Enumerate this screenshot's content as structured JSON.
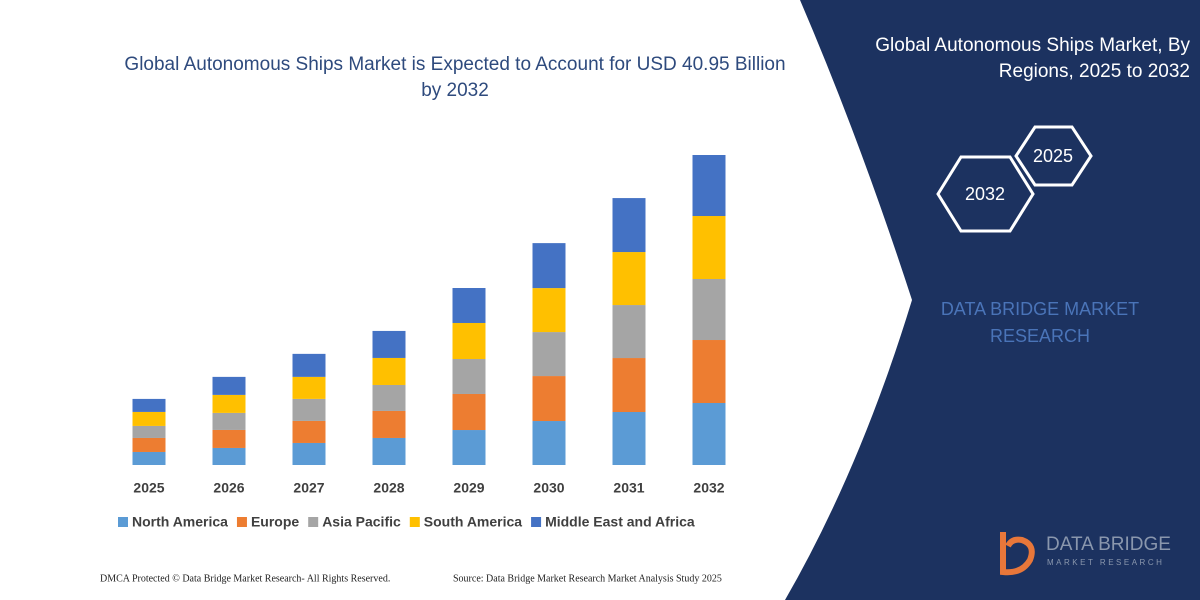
{
  "chart_data": {
    "type": "bar",
    "stacked": true,
    "title": "Global Autonomous Ships Market is Expected to Account for USD 40.95 Billion by 2032",
    "categories": [
      "2025",
      "2026",
      "2027",
      "2028",
      "2029",
      "2030",
      "2031",
      "2032"
    ],
    "series": [
      {
        "name": "North America",
        "color": "#5b9bd5",
        "values": [
          1.72,
          2.25,
          2.91,
          3.57,
          4.62,
          5.81,
          7.0,
          8.19
        ]
      },
      {
        "name": "Europe",
        "color": "#ed7d31",
        "values": [
          1.85,
          2.38,
          2.91,
          3.57,
          4.76,
          5.94,
          7.13,
          8.32
        ]
      },
      {
        "name": "Asia Pacific",
        "color": "#a5a5a5",
        "values": [
          1.59,
          2.25,
          2.91,
          3.43,
          4.62,
          5.81,
          7.0,
          8.06
        ]
      },
      {
        "name": "South America",
        "color": "#ffc000",
        "values": [
          1.85,
          2.38,
          2.91,
          3.57,
          4.76,
          5.81,
          7.0,
          8.32
        ]
      },
      {
        "name": "Middle East and Africa",
        "color": "#4472c4",
        "values": [
          1.72,
          2.38,
          3.04,
          3.57,
          4.62,
          5.94,
          7.13,
          8.06
        ]
      }
    ],
    "legend": "bottom"
  },
  "panel": {
    "title": "Global Autonomous Ships Market, By Regions, 2025 to 2032",
    "hexagons": [
      "2025",
      "2032"
    ],
    "brand": "DATA BRIDGE MARKET RESEARCH"
  },
  "logo": {
    "name": "DATA BRIDGE",
    "tagline": "MARKET RESEARCH"
  },
  "footer": {
    "dmca": "DMCA Protected © Data Bridge Market Research-  All Rights Reserved.",
    "source": "Source: Data Bridge Market Research  Market Analysis Study 2025"
  }
}
